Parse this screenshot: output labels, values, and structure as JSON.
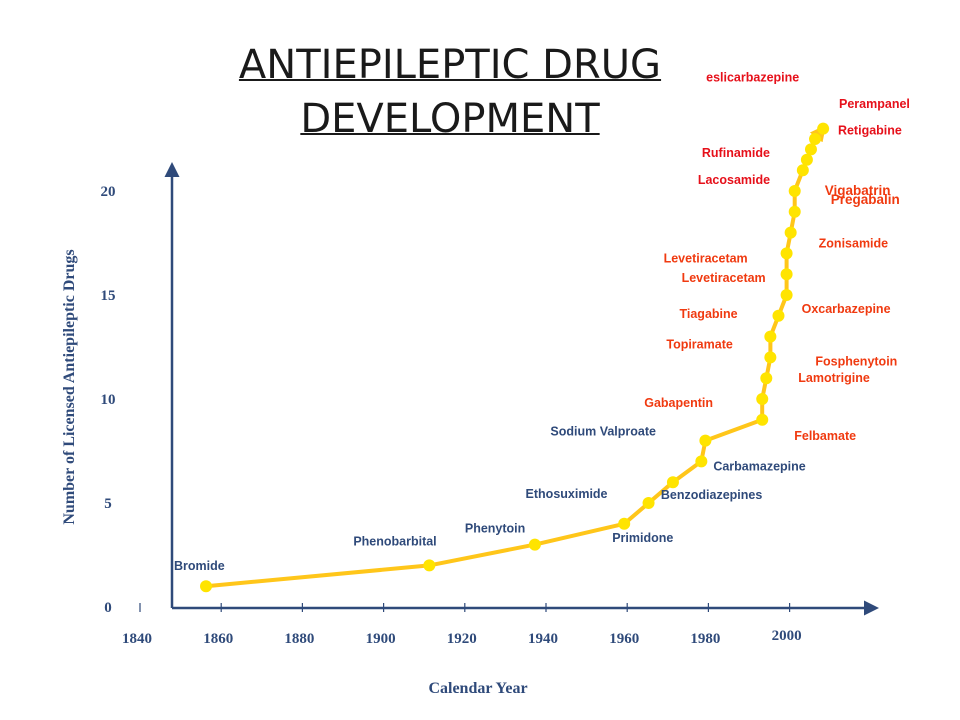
{
  "title_line1": "ANTIEPILEPTIC DRUG",
  "title_line2": "DEVELOPMENT",
  "colors": {
    "axis": "#2f4a7a",
    "line": "#ffc61a",
    "dot": "#ffe400",
    "label_early": "#2f4a7a",
    "label_modern": "#f03a10",
    "label_red": "#e6101a"
  },
  "chart_data": {
    "type": "line",
    "title": "ANTIEPILEPTIC DRUG DEVELOPMENT",
    "xlabel": "Calendar Year",
    "ylabel": "Number of Licensed Antiepileptic Drugs",
    "xlim": [
      1840,
      2010
    ],
    "ylim": [
      0,
      22
    ],
    "x_ticks": [
      "1840",
      "1860",
      "1880",
      "1900",
      "1920",
      "1940",
      "1960",
      "1980",
      "2000"
    ],
    "y_ticks": [
      "0",
      "5",
      "10",
      "15",
      "20"
    ],
    "grid": false,
    "legend": "none",
    "series": [
      {
        "points": [
          {
            "year": 1857,
            "count": 1,
            "drug": "Bromide",
            "color": "label_early"
          },
          {
            "year": 1912,
            "count": 2,
            "drug": "Phenobarbital",
            "color": "label_early"
          },
          {
            "year": 1938,
            "count": 3,
            "drug": "Phenytoin",
            "color": "label_early"
          },
          {
            "year": 1960,
            "count": 4,
            "drug": "Primidone",
            "color": "label_early"
          },
          {
            "year": 1966,
            "count": 5,
            "drug": "Ethosuximide",
            "color": "label_early"
          },
          {
            "year": 1972,
            "count": 6,
            "drug": "Benzodiazepines",
            "color": "label_early"
          },
          {
            "year": 1979,
            "count": 7,
            "drug": "Carbamazepine",
            "color": "label_early"
          },
          {
            "year": 1980,
            "count": 8,
            "drug": "Sodium Valproate",
            "color": "label_early"
          },
          {
            "year": 1994,
            "count": 9,
            "drug": "Felbamate",
            "color": "label_modern"
          },
          {
            "year": 1994,
            "count": 10,
            "drug": "Gabapentin",
            "color": "label_modern"
          },
          {
            "year": 1995,
            "count": 11,
            "drug": "Lamotrigine",
            "color": "label_modern"
          },
          {
            "year": 1996,
            "count": 12,
            "drug": "Fosphenytoin",
            "color": "label_modern"
          },
          {
            "year": 1996,
            "count": 13,
            "drug": "Topiramate",
            "color": "label_modern"
          },
          {
            "year": 1998,
            "count": 14,
            "drug": "Tiagabine",
            "color": "label_modern"
          },
          {
            "year": 2000,
            "count": 15,
            "drug": "Oxcarbazepine",
            "color": "label_modern"
          },
          {
            "year": 2000,
            "count": 16,
            "drug": "Levetiracetam",
            "color": "label_modern"
          },
          {
            "year": 2000,
            "count": 17,
            "drug": "Levetiracetam",
            "color": "label_modern"
          },
          {
            "year": 2001,
            "count": 18,
            "drug": "Zonisamide",
            "color": "label_modern"
          },
          {
            "year": 2002,
            "count": 19,
            "drug": "Pregabalin",
            "color": "label_modern"
          },
          {
            "year": 2002,
            "count": 20,
            "drug": "Vigabatrin",
            "color": "label_modern"
          },
          {
            "year": 2004,
            "count": 21,
            "drug": "Lacosamide",
            "color": "label_red"
          },
          {
            "year": 2005,
            "count": 21.5,
            "drug": "Rufinamide",
            "color": "label_red"
          },
          {
            "year": 2006,
            "count": 22,
            "drug": "Retigabine",
            "color": "label_red"
          },
          {
            "year": 2007,
            "count": 22.5,
            "drug": "Perampanel",
            "color": "label_red"
          },
          {
            "year": 2009,
            "count": 23,
            "drug": "eslicarbazepine",
            "color": "label_red"
          }
        ]
      }
    ]
  }
}
